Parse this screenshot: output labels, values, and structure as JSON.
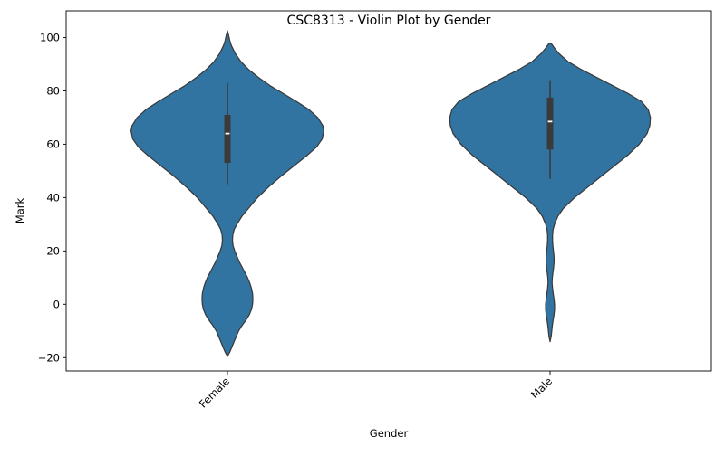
{
  "chart_data": {
    "type": "violin",
    "title": "CSC8313 - Violin Plot by Gender",
    "xlabel": "Gender",
    "ylabel": "Mark",
    "categories": [
      "Female",
      "Male"
    ],
    "ylim": [
      -25,
      110
    ],
    "yticks": [
      -20,
      0,
      20,
      40,
      60,
      80,
      100
    ],
    "ytick_labels": [
      "−20",
      "0",
      "20",
      "40",
      "60",
      "80",
      "100"
    ],
    "x_tick_rotation_deg": -45,
    "grid": false,
    "legend": "none",
    "colors": {
      "fill": "#3274a1",
      "edge": "#3a3a3a",
      "box": "#3a3a3a",
      "median": "#ffffff",
      "axis": "#000000"
    },
    "series": [
      {
        "category": "Female",
        "median": 64,
        "q1": 53,
        "q3": 71,
        "whisker_low": 45,
        "whisker_high": 83,
        "density": [
          [
            -19.5,
            0
          ],
          [
            -18,
            0.02
          ],
          [
            -16,
            0.04
          ],
          [
            -14,
            0.06
          ],
          [
            -12,
            0.08
          ],
          [
            -10,
            0.1
          ],
          [
            -8,
            0.13
          ],
          [
            -6,
            0.165
          ],
          [
            -4,
            0.195
          ],
          [
            -2,
            0.215
          ],
          [
            0,
            0.225
          ],
          [
            2,
            0.228
          ],
          [
            4,
            0.225
          ],
          [
            6,
            0.215
          ],
          [
            8,
            0.2
          ],
          [
            10,
            0.18
          ],
          [
            12,
            0.155
          ],
          [
            14,
            0.13
          ],
          [
            16,
            0.105
          ],
          [
            18,
            0.085
          ],
          [
            20,
            0.065
          ],
          [
            22,
            0.05
          ],
          [
            24,
            0.045
          ],
          [
            26,
            0.048
          ],
          [
            28,
            0.06
          ],
          [
            30,
            0.085
          ],
          [
            33,
            0.13
          ],
          [
            36,
            0.19
          ],
          [
            40,
            0.27
          ],
          [
            44,
            0.37
          ],
          [
            48,
            0.48
          ],
          [
            52,
            0.6
          ],
          [
            56,
            0.72
          ],
          [
            59,
            0.8
          ],
          [
            62,
            0.85
          ],
          [
            65,
            0.865
          ],
          [
            67,
            0.855
          ],
          [
            70,
            0.81
          ],
          [
            73,
            0.73
          ],
          [
            76,
            0.62
          ],
          [
            79,
            0.5
          ],
          [
            82,
            0.38
          ],
          [
            85,
            0.28
          ],
          [
            88,
            0.19
          ],
          [
            91,
            0.12
          ],
          [
            94,
            0.07
          ],
          [
            97,
            0.035
          ],
          [
            99,
            0.02
          ],
          [
            101,
            0.01
          ],
          [
            102.5,
            0
          ]
        ]
      },
      {
        "category": "Male",
        "median": 68.5,
        "q1": 58,
        "q3": 77.5,
        "whisker_low": 47,
        "whisker_high": 84,
        "density": [
          [
            -14,
            0
          ],
          [
            -12,
            0.01
          ],
          [
            -10,
            0.015
          ],
          [
            -8,
            0.02
          ],
          [
            -6,
            0.027
          ],
          [
            -4,
            0.035
          ],
          [
            -2,
            0.04
          ],
          [
            0,
            0.04
          ],
          [
            2,
            0.035
          ],
          [
            4,
            0.028
          ],
          [
            6,
            0.022
          ],
          [
            8,
            0.018
          ],
          [
            10,
            0.02
          ],
          [
            12,
            0.026
          ],
          [
            14,
            0.032
          ],
          [
            16,
            0.036
          ],
          [
            18,
            0.035
          ],
          [
            20,
            0.03
          ],
          [
            22,
            0.025
          ],
          [
            24,
            0.022
          ],
          [
            26,
            0.022
          ],
          [
            28,
            0.027
          ],
          [
            30,
            0.04
          ],
          [
            33,
            0.07
          ],
          [
            36,
            0.12
          ],
          [
            40,
            0.22
          ],
          [
            44,
            0.34
          ],
          [
            48,
            0.46
          ],
          [
            52,
            0.58
          ],
          [
            56,
            0.7
          ],
          [
            60,
            0.8
          ],
          [
            64,
            0.87
          ],
          [
            67,
            0.895
          ],
          [
            70,
            0.9
          ],
          [
            73,
            0.88
          ],
          [
            76,
            0.82
          ],
          [
            79,
            0.7
          ],
          [
            82,
            0.56
          ],
          [
            85,
            0.42
          ],
          [
            88,
            0.28
          ],
          [
            91,
            0.16
          ],
          [
            94,
            0.08
          ],
          [
            96,
            0.04
          ],
          [
            97.5,
            0.015
          ],
          [
            98,
            0
          ]
        ]
      }
    ]
  }
}
